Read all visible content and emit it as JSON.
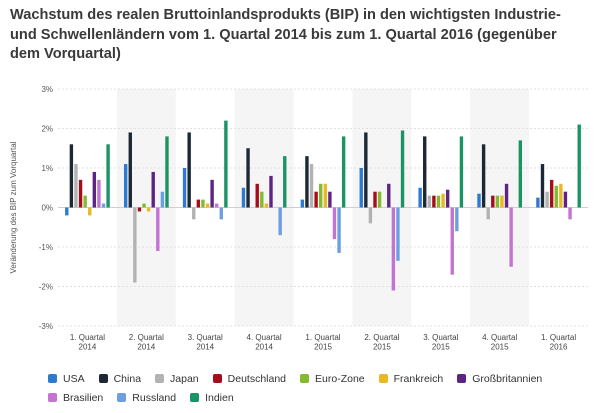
{
  "title": "Wachstum des realen Bruttoinlandsprodukts (BIP) in den wichtigsten Industrie- und Schwellenländern vom 1. Quartal 2014 bis zum 1. Quartal 2016 (gegenüber dem Vorquartal)",
  "chart_data": {
    "type": "bar",
    "title": "Wachstum des realen Bruttoinlandsprodukts (BIP) in den wichtigsten Industrie- und Schwellenländern vom 1. Quartal 2014 bis zum 1. Quartal 2016 (gegenüber dem Vorquartal)",
    "ylabel": "Veränderung des BIP zum Vorquartal",
    "xlabel": "",
    "ylim": [
      -3,
      3
    ],
    "yticks": [
      "3%",
      "2%",
      "1%",
      "0%",
      "-1%",
      "-2%",
      "-3%"
    ],
    "grid": true,
    "legend_position": "bottom",
    "categories": [
      [
        "1. Quartal",
        "2014"
      ],
      [
        "2. Quartal",
        "2014"
      ],
      [
        "3. Quartal",
        "2014"
      ],
      [
        "4. Quartal",
        "2014"
      ],
      [
        "1. Quartal",
        "2015"
      ],
      [
        "2. Quartal",
        "2015"
      ],
      [
        "3. Quartal",
        "2015"
      ],
      [
        "4. Quartal",
        "2015"
      ],
      [
        "1. Quartal",
        "2016"
      ]
    ],
    "series": [
      {
        "name": "USA",
        "color": "#2e7ad1",
        "values": [
          -0.2,
          1.1,
          1.0,
          0.5,
          0.2,
          1.0,
          0.5,
          0.35,
          0.25
        ]
      },
      {
        "name": "China",
        "color": "#1c2834",
        "values": [
          1.6,
          1.9,
          1.9,
          1.5,
          1.3,
          1.9,
          1.8,
          1.6,
          1.1
        ]
      },
      {
        "name": "Japan",
        "color": "#b2b2b2",
        "values": [
          1.1,
          -1.9,
          -0.3,
          0.0,
          1.1,
          -0.4,
          0.3,
          -0.3,
          0.4
        ]
      },
      {
        "name": "Deutschland",
        "color": "#a60d1a",
        "values": [
          0.7,
          -0.1,
          0.2,
          0.6,
          0.4,
          0.4,
          0.3,
          0.3,
          0.7
        ]
      },
      {
        "name": "Euro-Zone",
        "color": "#84ba2f",
        "values": [
          0.3,
          0.1,
          0.2,
          0.4,
          0.6,
          0.4,
          0.3,
          0.3,
          0.55
        ]
      },
      {
        "name": "Frankreich",
        "color": "#e8b923",
        "values": [
          -0.2,
          -0.1,
          0.1,
          0.1,
          0.6,
          0.0,
          0.35,
          0.3,
          0.6
        ]
      },
      {
        "name": "Großbritannien",
        "color": "#5c2483",
        "values": [
          0.9,
          0.9,
          0.7,
          0.8,
          0.4,
          0.6,
          0.45,
          0.6,
          0.4
        ]
      },
      {
        "name": "Brasilien",
        "color": "#c373d2",
        "values": [
          0.7,
          -1.1,
          0.1,
          0.0,
          -0.8,
          -2.1,
          -1.7,
          -1.5,
          -0.3
        ]
      },
      {
        "name": "Russland",
        "color": "#6d9fe0",
        "values": [
          0.1,
          0.4,
          -0.3,
          -0.7,
          -1.15,
          -1.35,
          -0.6,
          0.0,
          0.0
        ]
      },
      {
        "name": "Indien",
        "color": "#1a9365",
        "values": [
          1.6,
          1.8,
          2.2,
          1.3,
          1.8,
          1.95,
          1.8,
          1.7,
          2.1
        ]
      }
    ]
  }
}
